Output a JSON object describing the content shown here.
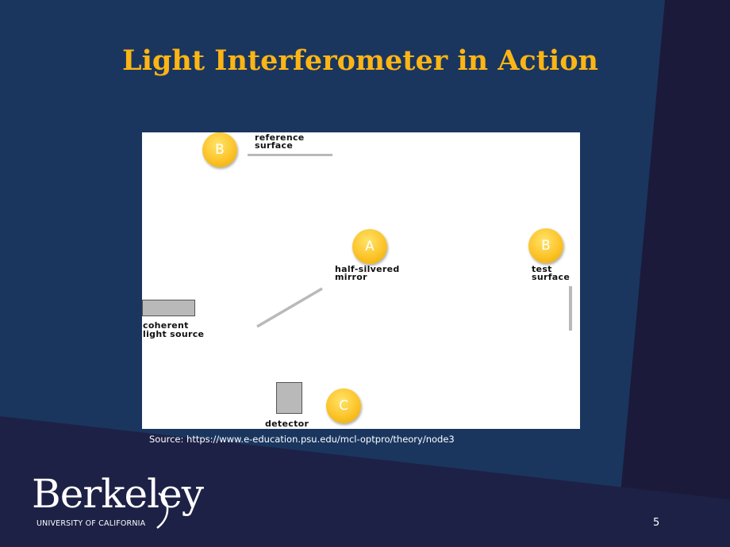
{
  "slide": {
    "title": "Light Interferometer in Action",
    "source": "Source: https://www.e-education.psu.edu/mcl-optpro/theory/node3",
    "page_number": "5"
  },
  "logo": {
    "wordmark": "Berkeley",
    "subtitle": "UNIVERSITY OF CALIFORNIA"
  },
  "diagram": {
    "labels": {
      "reference_line1": "reference",
      "reference_line2": "surface",
      "mirror_line1": "half-silvered",
      "mirror_line2": "mirror",
      "test_line1": "test",
      "test_line2": "surface",
      "source_line1": "coherent",
      "source_line2": "light source",
      "detector": "detector"
    },
    "badges": {
      "a": "A",
      "b_reference": "B",
      "b_test": "B",
      "c": "C"
    }
  },
  "colors": {
    "background": "#1a365f",
    "title": "#fdb515",
    "badge": "#fcc42a",
    "component": "#b9b9b9"
  }
}
